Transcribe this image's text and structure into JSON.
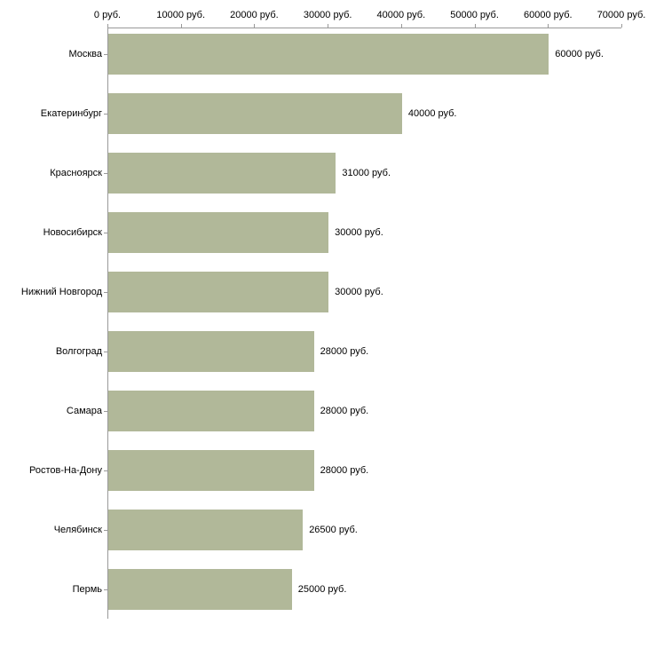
{
  "chart_data": {
    "type": "bar",
    "orientation": "horizontal",
    "title": "",
    "xlabel": "",
    "ylabel": "",
    "categories": [
      "Москва",
      "Екатеринбург",
      "Красноярск",
      "Новосибирск",
      "Нижний Новгород",
      "Волгоград",
      "Самара",
      "Ростов-На-Дону",
      "Челябинск",
      "Пермь"
    ],
    "values": [
      60000,
      40000,
      31000,
      30000,
      30000,
      28000,
      28000,
      28000,
      26500,
      25000
    ],
    "value_labels": [
      "60000 руб.",
      "40000 руб.",
      "31000 руб.",
      "30000 руб.",
      "30000 руб.",
      "28000 руб.",
      "28000 руб.",
      "28000 руб.",
      "26500 руб.",
      "25000 руб."
    ],
    "x_ticks": [
      0,
      10000,
      20000,
      30000,
      40000,
      50000,
      60000,
      70000
    ],
    "x_tick_labels": [
      "0 руб.",
      "10000 руб.",
      "20000 руб.",
      "30000 руб.",
      "40000 руб.",
      "50000 руб.",
      "60000 руб.",
      "70000 руб."
    ],
    "xlim": [
      0,
      70000
    ],
    "grid": false,
    "legend": false,
    "bar_color": "#b1b899",
    "axis_color": "#999999",
    "text_color": "#000000"
  }
}
